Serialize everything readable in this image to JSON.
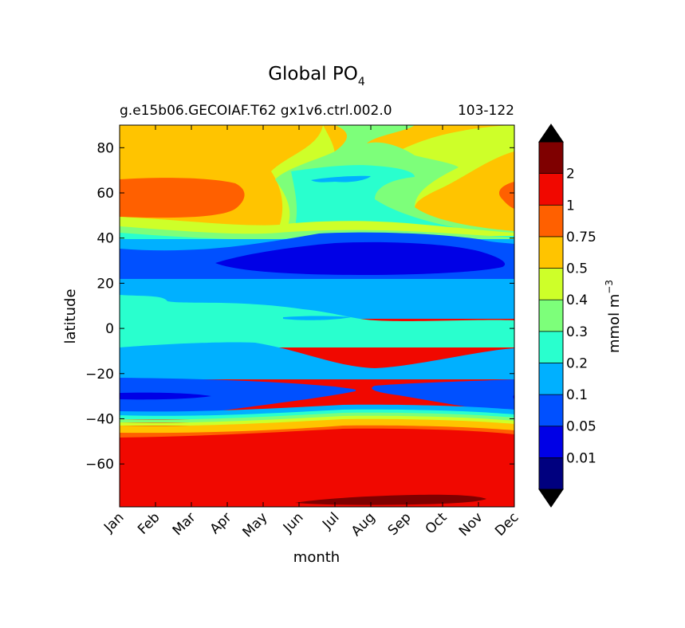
{
  "chart_data": {
    "type": "heatmap",
    "subtype": "filled-contour",
    "title": "Global PO",
    "title_subscript": "4",
    "subtitle_left": "g.e15b06.GECOIAF.T62 gx1v6.ctrl.002.0",
    "subtitle_right": "103-122",
    "xlabel": "month",
    "ylabel": "latitude",
    "x_ticks": [
      "Jan",
      "Feb",
      "Mar",
      "Apr",
      "May",
      "Jun",
      "Jul",
      "Aug",
      "Sep",
      "Oct",
      "Nov",
      "Dec"
    ],
    "y_ticks": [
      "80",
      "60",
      "40",
      "20",
      "0",
      "−20",
      "−40",
      "−60"
    ],
    "y_tick_values": [
      80,
      60,
      40,
      20,
      0,
      -20,
      -40,
      -60
    ],
    "ylim": [
      -79,
      90
    ],
    "xlim": [
      0,
      11
    ],
    "colorbar": {
      "label": "mmol m",
      "label_superscript": "−3",
      "levels": [
        "0.01",
        "0.05",
        "0.1",
        "0.2",
        "0.3",
        "0.4",
        "0.5",
        "0.75",
        "1",
        "2"
      ],
      "colors": [
        "#00007f",
        "#0000e6",
        "#0050ff",
        "#00b0ff",
        "#29ffce",
        "#7dff7a",
        "#ceff29",
        "#ffc400",
        "#ff6000",
        "#f10800",
        "#7f0000"
      ],
      "extend": "both",
      "under_color": "#000000",
      "over_color": "#000000"
    },
    "bands_by_latitude": [
      {
        "lat_range": [
          -79,
          -48
        ],
        "value_class": "1-2",
        "color": "#f10800"
      },
      {
        "lat_range": [
          -48,
          -42
        ],
        "value_class": "0.3-1",
        "color": "#ffc400"
      },
      {
        "lat_range": [
          -42,
          -22
        ],
        "value_class": "0.05-0.2",
        "color": "#0050ff"
      },
      {
        "lat_range": [
          -22,
          -8
        ],
        "value_class": "0.1-0.2",
        "color": "#00b0ff"
      },
      {
        "lat_range": [
          -8,
          13
        ],
        "value_class": "0.2-0.3",
        "color": "#29ffce"
      },
      {
        "lat_range": [
          13,
          22
        ],
        "value_class": "0.1-0.2",
        "color": "#00b0ff"
      },
      {
        "lat_range": [
          22,
          42
        ],
        "value_class": "0.01-0.1",
        "color": "#0000e6"
      },
      {
        "lat_range": [
          42,
          48
        ],
        "value_class": "0.2-0.5",
        "color": "#7dff7a"
      },
      {
        "lat_range": [
          48,
          90
        ],
        "value_class": "0.5-1",
        "color": "#ffc400"
      }
    ]
  }
}
